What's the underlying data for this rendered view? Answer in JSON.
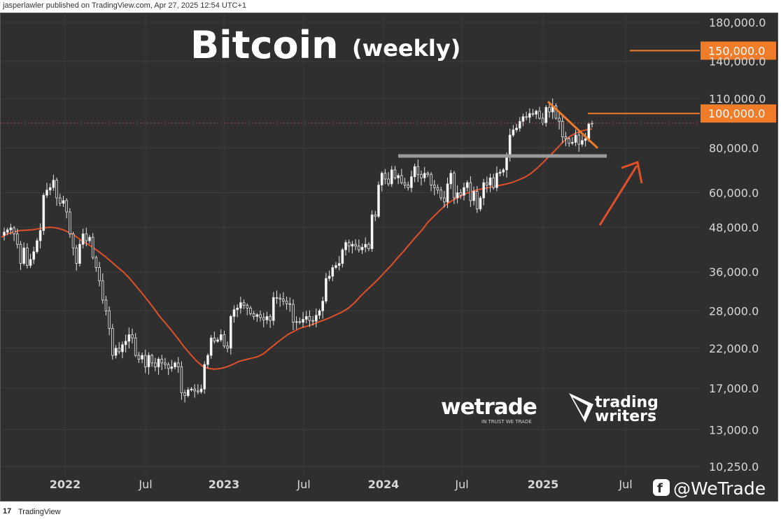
{
  "header": {
    "published": "jasperlawler published on TradingView.com, Apr 27, 2025 12:54 UTC+1"
  },
  "footer": {
    "brand_logo": "17",
    "brand": "TradingView"
  },
  "chart_data": {
    "type": "candlestick",
    "title": "Bitcoin",
    "subtitle": "(weekly)",
    "y_scale": "log",
    "y_ticks": [
      "180,000.0",
      "140,000.0",
      "110,000.0",
      "80,000.0",
      "60,000.0",
      "48,000.0",
      "36,000.0",
      "28,000.0",
      "22,000.0",
      "17,000.0",
      "13,000.0",
      "10,250.0"
    ],
    "x_ticks": [
      "2022",
      "Jul",
      "2023",
      "Jul",
      "2024",
      "Jul",
      "2025",
      "Jul"
    ],
    "price_labels": [
      {
        "text": "150,000.0",
        "value": 150000,
        "color": "#f07c2a"
      },
      {
        "text": "100,000.0",
        "value": 100000,
        "color": "#f07c2a"
      }
    ],
    "series": [
      {
        "name": "",
        "kind": "close",
        "values": [
          46500,
          47200,
          47800,
          46000,
          43000,
          38000,
          42000,
          37500,
          39000,
          41000,
          44000,
          47000,
          59000,
          61000,
          62000,
          65000,
          58000,
          56000,
          57000,
          53000,
          46000,
          42000,
          38000,
          43000,
          46000,
          44000,
          45000,
          39500,
          37000,
          34000,
          30000,
          28000,
          25000,
          21000,
          22000,
          21500,
          22500,
          23000,
          24000,
          23500,
          21000,
          20500,
          21000,
          19500,
          21000,
          20000,
          19500,
          20500,
          20000,
          19800,
          19300,
          19500,
          20000,
          19500,
          16500,
          16200,
          16800,
          16900,
          16700,
          16600,
          16900,
          19800,
          21000,
          23500,
          23000,
          23200,
          24000,
          22300,
          22000,
          27000,
          28200,
          28500,
          29500,
          29000,
          28500,
          27500,
          27000,
          27300,
          26800,
          26400,
          27000,
          26300,
          30500,
          30400,
          30200,
          29800,
          29300,
          29200,
          26000,
          26100,
          26000,
          26500,
          27000,
          26300,
          26200,
          27200,
          28000,
          29800,
          34500,
          35000,
          37000,
          37500,
          38000,
          41500,
          43500,
          42500,
          43000,
          42500,
          41500,
          42200,
          43000,
          41800,
          52000,
          51500,
          63000,
          68000,
          65500,
          63500,
          69500,
          66000,
          67000,
          64000,
          63000,
          62000,
          66500,
          71000,
          67500,
          66000,
          68000,
          67500,
          63000,
          62000,
          61000,
          58000,
          56500,
          63500,
          68000,
          58000,
          60000,
          59000,
          62000,
          64000,
          57000,
          60500,
          54000,
          58000,
          64000,
          63000,
          66000,
          62000,
          68000,
          68500,
          69500,
          76000,
          87000,
          90000,
          91000,
          95000,
          98000,
          97500,
          100000,
          99500,
          101500,
          97000,
          94000,
          104000,
          101000,
          105000,
          97000,
          95000,
          86000,
          85000,
          82500,
          83000,
          87000,
          82000,
          84000,
          85000,
          93500,
          94000
        ]
      },
      {
        "name": "",
        "kind": "moving-average",
        "values": [
          45000,
          46000,
          46500,
          47000,
          47100,
          47200,
          47500,
          47800,
          48000,
          47800,
          47300,
          46500,
          45500,
          44300,
          43200,
          42200,
          41000,
          39800,
          38500,
          37200,
          36000,
          34600,
          33000,
          31500,
          30000,
          28500,
          27000,
          25800,
          24600,
          23400,
          22200,
          21200,
          20300,
          19600,
          19300,
          19200,
          19300,
          19500,
          19800,
          20200,
          20400,
          20600,
          20800,
          21200,
          21900,
          22600,
          23300,
          24000,
          24500,
          25000,
          25300,
          25600,
          26000,
          26400,
          26800,
          27300,
          27800,
          28500,
          29500,
          30800,
          32000,
          33200,
          34500,
          36000,
          37500,
          39300,
          41000,
          43000,
          45000,
          47000,
          49500,
          51500,
          53500,
          55500,
          57000,
          58200,
          59300,
          60300,
          61000,
          61500,
          62000,
          62500,
          63000,
          63500,
          64200,
          65200,
          66300,
          68000,
          70300,
          73000,
          76000,
          79000,
          82500,
          85500,
          87500,
          89000,
          90000,
          90500
        ]
      }
    ],
    "annotations": [
      {
        "type": "horizontal-line",
        "name": "support",
        "value": 76000,
        "color": "#9a9a9a"
      },
      {
        "type": "trendline",
        "name": "downtrend",
        "from": {
          "date": "2024-12-16",
          "value": 108000
        },
        "to": {
          "date": "2025-04-07",
          "value": 80000
        },
        "color": "#f07c2a"
      },
      {
        "type": "arrow",
        "name": "bullish-arrow",
        "color": "#e0502a"
      },
      {
        "type": "horizontal-line",
        "name": "current-price-dotted",
        "value": 94000,
        "color": "#b04a3a"
      }
    ],
    "grid": true
  },
  "watermarks": {
    "wetrade": {
      "name": "wetrade",
      "tagline": "IN TRUST WE TRADE"
    },
    "trading_writers": {
      "line1": "trading",
      "line2": "writers"
    },
    "handle": "@WeTrade"
  }
}
